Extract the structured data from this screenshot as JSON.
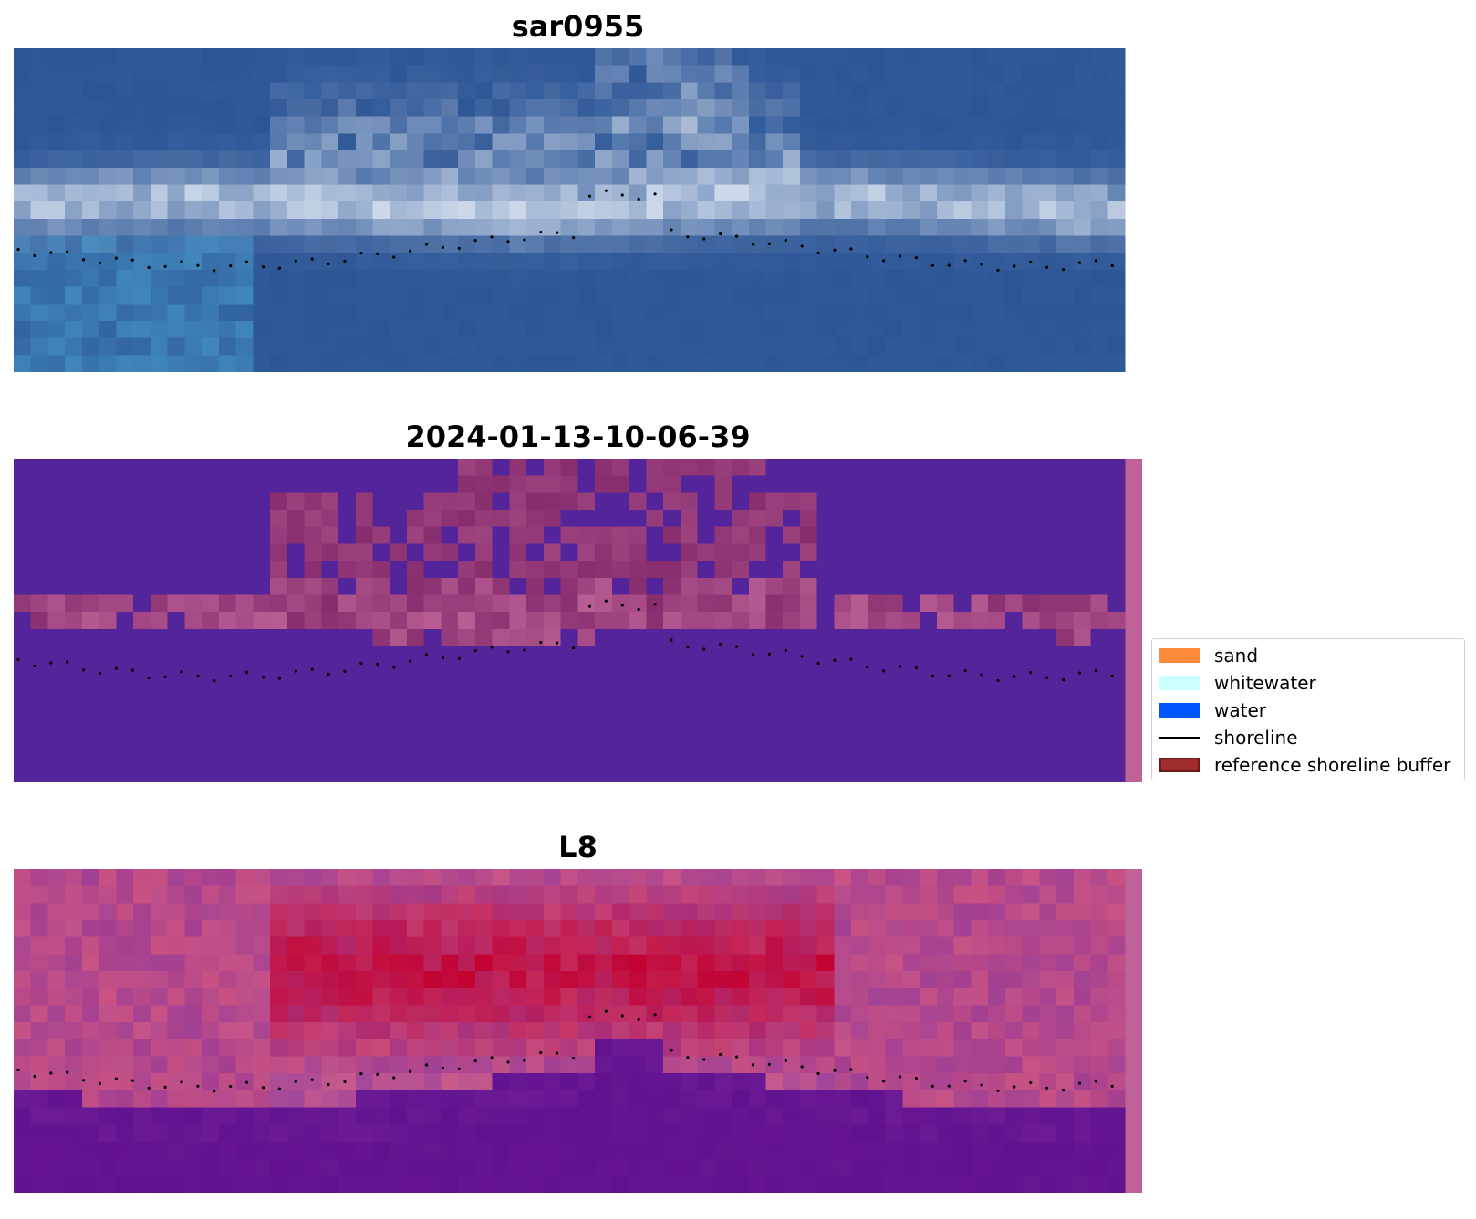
{
  "panels": [
    {
      "title": "sar0955",
      "style": "rgb"
    },
    {
      "title": "2024-01-13-10-06-39",
      "style": "class"
    },
    {
      "title": "L8",
      "style": "index"
    }
  ],
  "legend": {
    "items": [
      {
        "label": "sand",
        "type": "patch",
        "color": "#ff8c3b"
      },
      {
        "label": "whitewater",
        "type": "patch",
        "color": "#ccffff"
      },
      {
        "label": "water",
        "type": "patch",
        "color": "#0055ff"
      },
      {
        "label": "shoreline",
        "type": "line",
        "color": "#000000"
      },
      {
        "label": "reference shoreline buffer",
        "type": "patch",
        "color": "#a02c2c"
      }
    ]
  },
  "colors": {
    "sar_water": "#2f5a9a",
    "sar_whitewater": "#e8eef8",
    "class_background": "#54259a",
    "class_frame": "#be6298",
    "index_background": "#61128f",
    "index_high": "#c3002f",
    "shoreline": "#000000"
  }
}
